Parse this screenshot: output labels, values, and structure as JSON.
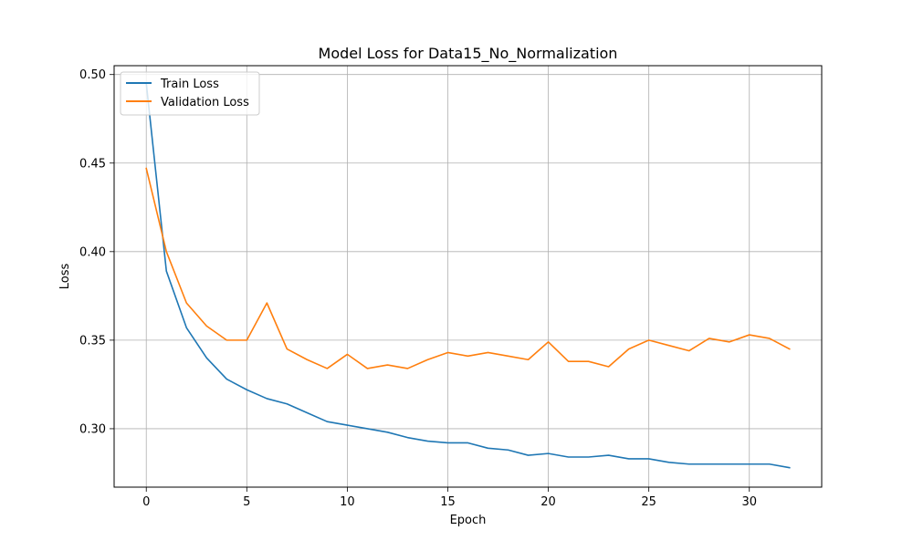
{
  "chart_data": {
    "type": "line",
    "title": "Model Loss for Data15_No_Normalization",
    "xlabel": "Epoch",
    "ylabel": "Loss",
    "xlim": [
      -1.6,
      33.6
    ],
    "ylim": [
      0.267,
      0.505
    ],
    "xticks": [
      0,
      5,
      10,
      15,
      20,
      25,
      30
    ],
    "yticks": [
      0.3,
      0.35,
      0.4,
      0.45,
      0.5
    ],
    "grid": true,
    "legend_position": "top-left",
    "x": [
      0,
      1,
      2,
      3,
      4,
      5,
      6,
      7,
      8,
      9,
      10,
      11,
      12,
      13,
      14,
      15,
      16,
      17,
      18,
      19,
      20,
      21,
      22,
      23,
      24,
      25,
      26,
      27,
      28,
      29,
      30,
      31,
      32
    ],
    "series": [
      {
        "name": "Train Loss",
        "color": "#1f77b4",
        "values": [
          0.495,
          0.389,
          0.357,
          0.34,
          0.328,
          0.322,
          0.317,
          0.314,
          0.309,
          0.304,
          0.302,
          0.3,
          0.298,
          0.295,
          0.293,
          0.292,
          0.292,
          0.289,
          0.288,
          0.285,
          0.286,
          0.284,
          0.284,
          0.285,
          0.283,
          0.283,
          0.281,
          0.28,
          0.28,
          0.28,
          0.28,
          0.28,
          0.278
        ]
      },
      {
        "name": "Validation Loss",
        "color": "#ff7f0e",
        "values": [
          0.447,
          0.4,
          0.371,
          0.358,
          0.35,
          0.35,
          0.371,
          0.345,
          0.339,
          0.334,
          0.342,
          0.334,
          0.336,
          0.334,
          0.339,
          0.343,
          0.341,
          0.343,
          0.341,
          0.339,
          0.349,
          0.338,
          0.338,
          0.335,
          0.345,
          0.35,
          0.347,
          0.344,
          0.351,
          0.349,
          0.353,
          0.351,
          0.345
        ]
      }
    ]
  }
}
